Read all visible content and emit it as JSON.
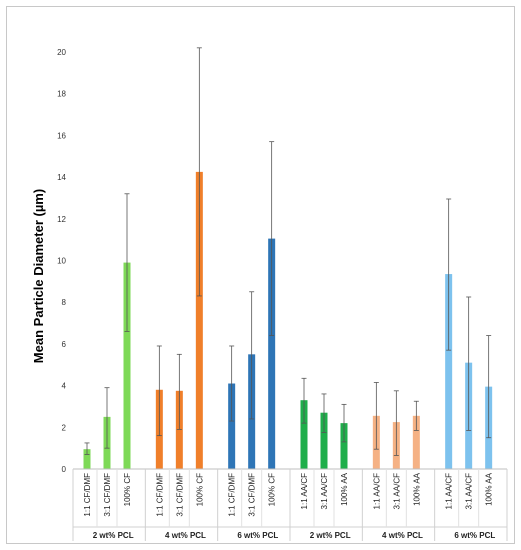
{
  "chart_data": {
    "type": "bar",
    "title": "",
    "ylabel": "Mean Particle Diameter (µm)",
    "xlabel": "",
    "ylim": [
      0,
      20
    ],
    "yticks": [
      0,
      2,
      4,
      6,
      8,
      10,
      12,
      14,
      16,
      18,
      20
    ],
    "grid": false,
    "legend": "none",
    "groups": [
      {
        "label": "2 wt% PCL",
        "bars": [
          {
            "label": "1:1 CF/DMF",
            "value": 0.95,
            "error_low": 0.7,
            "error_high": 1.25,
            "color": "#7ED957"
          },
          {
            "label": "3:1 CF/DMF",
            "value": 2.5,
            "error_low": 1.0,
            "error_high": 3.9,
            "color": "#7ED957"
          },
          {
            "label": "100% CF",
            "value": 9.9,
            "error_low": 6.6,
            "error_high": 13.2,
            "color": "#7ED957"
          }
        ]
      },
      {
        "label": "4 wt% PCL",
        "bars": [
          {
            "label": "1:1 CF/DMF",
            "value": 3.8,
            "error_low": 1.6,
            "error_high": 5.9,
            "color": "#F07F2A"
          },
          {
            "label": "3:1 CF/DMF",
            "value": 3.75,
            "error_low": 1.9,
            "error_high": 5.5,
            "color": "#F07F2A"
          },
          {
            "label": "100% CF",
            "value": 14.25,
            "error_low": 8.3,
            "error_high": 20.2,
            "color": "#F07F2A"
          }
        ]
      },
      {
        "label": "6 wt% PCL",
        "bars": [
          {
            "label": "1:1 CF/DMF",
            "value": 4.1,
            "error_low": 2.3,
            "error_high": 5.9,
            "color": "#2E75B6"
          },
          {
            "label": "3:1 CF/DMF",
            "value": 5.5,
            "error_low": 2.4,
            "error_high": 8.5,
            "color": "#2E75B6"
          },
          {
            "label": "100% CF",
            "value": 11.05,
            "error_low": 6.4,
            "error_high": 15.7,
            "color": "#2E75B6"
          }
        ]
      },
      {
        "label": "2 wt% PCL",
        "bars": [
          {
            "label": "1:1 AA/CF",
            "value": 3.3,
            "error_low": 2.2,
            "error_high": 4.35,
            "color": "#1FAE4B"
          },
          {
            "label": "3:1 AA/CF",
            "value": 2.7,
            "error_low": 1.75,
            "error_high": 3.6,
            "color": "#1FAE4B"
          },
          {
            "label": "100% AA",
            "value": 2.2,
            "error_low": 1.3,
            "error_high": 3.1,
            "color": "#1FAE4B"
          }
        ]
      },
      {
        "label": "4 wt% PCL",
        "bars": [
          {
            "label": "1:1 AA/CF",
            "value": 2.55,
            "error_low": 0.95,
            "error_high": 4.15,
            "color": "#F5B184"
          },
          {
            "label": "3:1 AA/CF",
            "value": 2.25,
            "error_low": 0.65,
            "error_high": 3.75,
            "color": "#F5B184"
          },
          {
            "label": "100% AA",
            "value": 2.55,
            "error_low": 1.85,
            "error_high": 3.25,
            "color": "#F5B184"
          }
        ]
      },
      {
        "label": "6 wt% PCL",
        "bars": [
          {
            "label": "1:1 AA/CF",
            "value": 9.35,
            "error_low": 5.7,
            "error_high": 12.95,
            "color": "#7DC2EE"
          },
          {
            "label": "3:1 AA/CF",
            "value": 5.1,
            "error_low": 1.85,
            "error_high": 8.25,
            "color": "#7DC2EE"
          },
          {
            "label": "100% AA",
            "value": 3.95,
            "error_low": 1.5,
            "error_high": 6.4,
            "color": "#7DC2EE"
          }
        ]
      }
    ]
  }
}
